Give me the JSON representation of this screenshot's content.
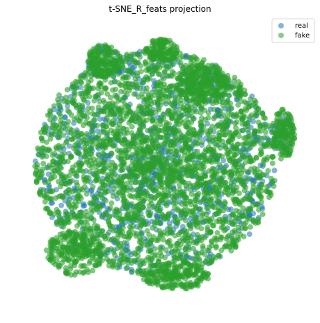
{
  "chart_data": {
    "type": "scatter",
    "title": "t-SNE_R_feats projection",
    "xlabel": "",
    "ylabel": "",
    "axes_visible": false,
    "grid": false,
    "legend_placement": "top-right",
    "series": [
      {
        "name": "real",
        "color": "#1f77b4",
        "description_points": "dense cloud of blue points underlying the green points, mostly occluded",
        "clusters": [
          {
            "cx": -2,
            "cy": 2,
            "rx": 42,
            "ry": 40,
            "n": 900
          },
          {
            "cx": -20,
            "cy": 38,
            "rx": 6,
            "ry": 6,
            "n": 40
          },
          {
            "cx": 14,
            "cy": 30,
            "rx": 8,
            "ry": 6,
            "n": 40
          },
          {
            "cx": 42,
            "cy": 12,
            "rx": 4,
            "ry": 8,
            "n": 30
          }
        ]
      },
      {
        "name": "fake",
        "color": "#2ca02c",
        "description_points": "dense cloud of green points covering nearly the entire blob",
        "clusters": [
          {
            "cx": -2,
            "cy": 2,
            "rx": 42,
            "ry": 40,
            "n": 2600
          },
          {
            "cx": -20,
            "cy": 38,
            "rx": 6,
            "ry": 6,
            "n": 150
          },
          {
            "cx": 0,
            "cy": 42,
            "rx": 6,
            "ry": 4,
            "n": 120
          },
          {
            "cx": 14,
            "cy": 30,
            "rx": 9,
            "ry": 7,
            "n": 220
          },
          {
            "cx": 42,
            "cy": 12,
            "rx": 4,
            "ry": 9,
            "n": 140
          },
          {
            "cx": -30,
            "cy": -30,
            "rx": 10,
            "ry": 8,
            "n": 200
          },
          {
            "cx": 5,
            "cy": -38,
            "rx": 12,
            "ry": 5,
            "n": 200
          }
        ]
      }
    ],
    "xlim": [
      -50,
      50
    ],
    "ylim": [
      -50,
      50
    ]
  }
}
